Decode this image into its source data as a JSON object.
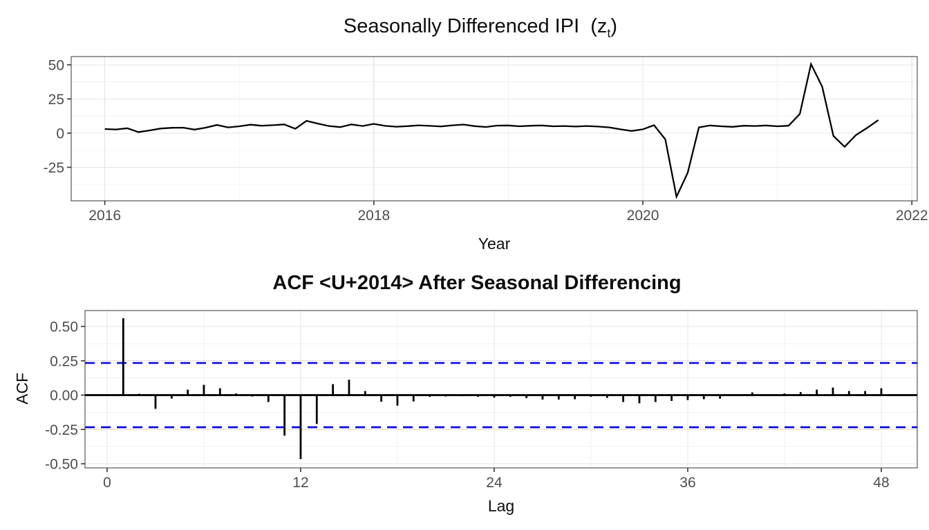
{
  "figure": {
    "background": "#ffffff"
  },
  "colors": {
    "grid_major": "#e4e4e4",
    "grid_minor": "#f1f1f1",
    "panel_border": "#333333",
    "axis_text": "#4d4d4d",
    "tick_mark": "#333333",
    "title_text": "#0d0d0d"
  },
  "chart_data": [
    {
      "type": "line",
      "title_pre": "Seasonally Differenced IPI  (z",
      "title_sub": "t",
      "title_post": ")",
      "xlabel": "Year",
      "ylabel": "",
      "xlim": [
        2015.75,
        2022.04
      ],
      "ylim": [
        -49.5,
        56
      ],
      "x_ticks": {
        "values": [
          2016,
          2018,
          2020,
          2022
        ],
        "labels": [
          "2016",
          "2018",
          "2020",
          "2022"
        ]
      },
      "x_minor": [
        2017,
        2019,
        2021
      ],
      "y_ticks": {
        "values": [
          50,
          25,
          0,
          -25
        ],
        "labels": [
          "50",
          "25",
          "0",
          "-25"
        ]
      },
      "y_minor": [
        37.5,
        12.5,
        -12.5,
        -37.5
      ],
      "grid": true,
      "legend": "none",
      "series": {
        "name": "seasonally-differenced-ipi",
        "color": "#000000",
        "x_start": 2016.0,
        "x_step": 0.0833333,
        "values": [
          3.0,
          2.7,
          3.6,
          0.8,
          2.0,
          3.4,
          3.9,
          4.0,
          2.6,
          4.0,
          6.0,
          4.2,
          5.0,
          6.2,
          5.4,
          5.8,
          6.4,
          3.2,
          9.0,
          7.0,
          5.2,
          4.4,
          6.4,
          5.2,
          6.8,
          5.3,
          4.7,
          5.1,
          5.7,
          5.3,
          4.9,
          5.7,
          6.3,
          5.1,
          4.5,
          5.5,
          5.6,
          5.0,
          5.4,
          5.6,
          5.0,
          5.2,
          4.8,
          5.2,
          4.8,
          4.2,
          2.8,
          1.6,
          2.8,
          5.8,
          -4.5,
          -46.5,
          -29.0,
          4.2,
          5.6,
          5.0,
          4.6,
          5.4,
          5.2,
          5.6,
          5.0,
          5.4,
          14.0,
          50.5,
          34.0,
          -2.0,
          -10.0,
          -1.5,
          3.8,
          9.5
        ]
      }
    },
    {
      "type": "bar",
      "title": "ACF <U+2014> After Seasonal Differencing",
      "xlabel": "Lag",
      "ylabel": "ACF",
      "xlim": [
        -1.37,
        50.23
      ],
      "ylim": [
        -0.53,
        0.616
      ],
      "x_ticks": {
        "values": [
          0,
          12,
          24,
          36,
          48
        ],
        "labels": [
          "0",
          "12",
          "24",
          "36",
          "48"
        ]
      },
      "x_minor": [
        6,
        18,
        30,
        42
      ],
      "y_ticks": {
        "values": [
          0.5,
          0.25,
          0,
          -0.25,
          -0.5
        ],
        "labels": [
          "0.50",
          "0.25",
          "0.00",
          "-0.25",
          "-0.50"
        ]
      },
      "y_minor": [
        0.375,
        0.125,
        -0.125,
        -0.375
      ],
      "grid": true,
      "legend": "none",
      "zero_line": {
        "color": "#000000",
        "width": 2.8
      },
      "conf_bands": {
        "value": 0.234,
        "color": "#0000EE",
        "style": "dashed",
        "width": 2.6
      },
      "bars": {
        "name": "acf-values",
        "color": "#000000",
        "lag_start": 1,
        "values": [
          0.56,
          0.01,
          -0.1,
          -0.025,
          0.04,
          0.075,
          0.05,
          0.012,
          -0.01,
          -0.05,
          -0.295,
          -0.465,
          -0.21,
          0.08,
          0.112,
          0.03,
          -0.048,
          -0.077,
          -0.046,
          -0.012,
          -0.01,
          -0.008,
          -0.012,
          -0.018,
          -0.012,
          -0.022,
          -0.032,
          -0.032,
          -0.03,
          -0.012,
          -0.02,
          -0.05,
          -0.06,
          -0.05,
          -0.042,
          -0.036,
          -0.03,
          -0.026,
          -0.005,
          0.02,
          0.005,
          0.012,
          0.022,
          0.04,
          0.055,
          0.03,
          0.03,
          0.05
        ]
      }
    }
  ]
}
